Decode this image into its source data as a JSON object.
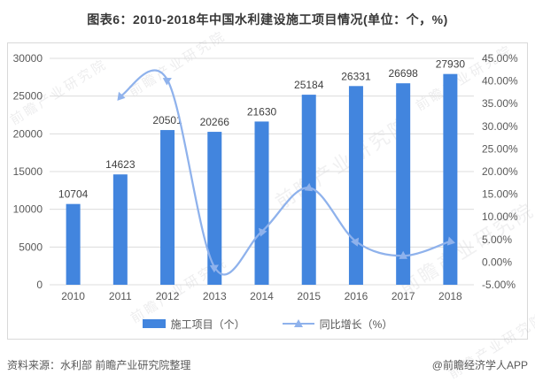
{
  "page": {
    "title": "图表6：2010-2018年中国水利建设施工项目情况(单位：个，%)",
    "source_note": "资料来源：水利部 前瞻产业研究院整理",
    "credit": "@前瞻经济学人APP"
  },
  "watermark": {
    "text": "前瞻产业研究院"
  },
  "legend": {
    "items": [
      {
        "label": "施工项目（个）",
        "type": "bar"
      },
      {
        "label": "同比增长（%）",
        "type": "line"
      }
    ]
  },
  "colors": {
    "bar": "#4285de",
    "line": "#8fb2ec",
    "grid": "#dcdcdc",
    "axis_text": "#595959",
    "bar_label": "#404040",
    "title": "#383838",
    "footer": "#595959",
    "border": "#d9d9d9"
  },
  "chart_data": {
    "type": "bar",
    "subtype": "bar+line combo, dual axis",
    "title": "图表6：2010-2018年中国水利建设施工项目情况(单位：个，%)",
    "categories": [
      "2010",
      "2011",
      "2012",
      "2013",
      "2014",
      "2015",
      "2016",
      "2017",
      "2018"
    ],
    "series": [
      {
        "name": "施工项目（个）",
        "type": "bar",
        "axis": "left",
        "values": [
          10704,
          14623,
          20501,
          20266,
          21630,
          25184,
          26331,
          26698,
          27930
        ],
        "data_labels": [
          "10704",
          "14623",
          "20501",
          "20266",
          "21630",
          "25184",
          "26331",
          "26698",
          "27930"
        ]
      },
      {
        "name": "同比增长（%）",
        "type": "line",
        "axis": "right",
        "values": [
          null,
          36.61,
          40.19,
          -1.15,
          6.73,
          16.43,
          4.55,
          1.39,
          4.61
        ]
      }
    ],
    "left_axis": {
      "min": 0,
      "max": 30000,
      "step": 5000,
      "tick_labels": [
        "0",
        "5000",
        "10000",
        "15000",
        "20000",
        "25000",
        "30000"
      ]
    },
    "right_axis": {
      "min": -5,
      "max": 45,
      "step": 5,
      "tick_labels": [
        "-5.00%",
        "0.00%",
        "5.00%",
        "10.00%",
        "15.00%",
        "20.00%",
        "25.00%",
        "30.00%",
        "35.00%",
        "40.00%",
        "45.00%"
      ]
    },
    "grid": true,
    "legend_position": "bottom"
  }
}
